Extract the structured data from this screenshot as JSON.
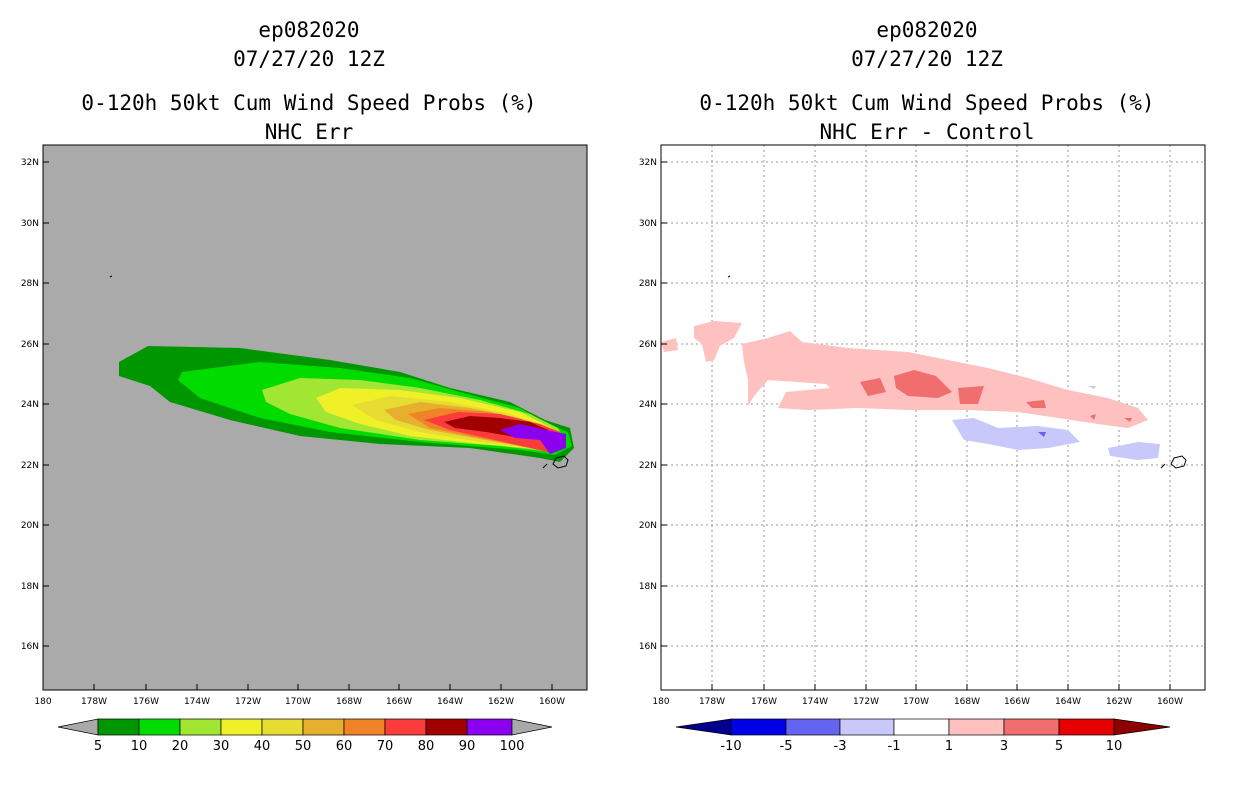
{
  "left": {
    "title_storm": "ep082020",
    "title_time": "07/27/20 12Z",
    "title_product": "0-120h 50kt Cum Wind Speed Probs (%)",
    "title_subtitle": "NHC Err",
    "lat_labels": [
      "32N",
      "30N",
      "28N",
      "26N",
      "24N",
      "22N",
      "20N",
      "18N",
      "16N"
    ],
    "lon_labels": [
      "180",
      "178W",
      "176W",
      "174W",
      "172W",
      "170W",
      "168W",
      "166W",
      "164W",
      "162W",
      "160W"
    ],
    "colorbar_labels": [
      "5",
      "10",
      "20",
      "30",
      "40",
      "50",
      "60",
      "70",
      "80",
      "90",
      "100"
    ],
    "colorbar_colors": [
      "#a9a9a9",
      "#009600",
      "#00dc00",
      "#a0e632",
      "#f0f028",
      "#e6dc32",
      "#e6af2d",
      "#f08228",
      "#fa3c3c",
      "#a00000",
      "#8c00f0",
      "#a9a9a9"
    ],
    "background_color": "#aaaaaa"
  },
  "right": {
    "title_storm": "ep082020",
    "title_time": "07/27/20 12Z",
    "title_product": "0-120h 50kt Cum Wind Speed Probs (%)",
    "title_subtitle": "NHC Err - Control",
    "lat_labels": [
      "32N",
      "30N",
      "28N",
      "26N",
      "24N",
      "22N",
      "20N",
      "18N",
      "16N"
    ],
    "lon_labels": [
      "180",
      "178W",
      "176W",
      "174W",
      "172W",
      "170W",
      "168W",
      "166W",
      "164W",
      "162W",
      "160W"
    ],
    "colorbar_labels": [
      "-10",
      "-5",
      "-3",
      "-1",
      "1",
      "3",
      "5",
      "10"
    ],
    "colorbar_colors": [
      "#00008c",
      "#0000e6",
      "#6464f0",
      "#c8c8fa",
      "#ffffff",
      "#ffc0c0",
      "#f06e6e",
      "#e60000",
      "#8c0000"
    ]
  },
  "chart_data": [
    {
      "type": "heatmap",
      "title": "0-120h 50kt Cum Wind Speed Probs (%)",
      "subtitle": "NHC Err",
      "storm": "ep082020",
      "time": "07/27/20 12Z",
      "lon_range": [
        -180,
        -158.5
      ],
      "lat_range": [
        14.5,
        32.5
      ],
      "contour_levels": [
        5,
        10,
        20,
        30,
        40,
        50,
        60,
        70,
        80,
        90,
        100
      ],
      "feature": "probability swath extending from about 176W-25N east-southeast to about 160W-23N, maximum 90-100% near 161W-23N"
    },
    {
      "type": "heatmap",
      "title": "0-120h 50kt Cum Wind Speed Probs (%)",
      "subtitle": "NHC Err - Control",
      "storm": "ep082020",
      "time": "07/27/20 12Z",
      "lon_range": [
        -180,
        -158.5
      ],
      "lat_range": [
        14.5,
        32.5
      ],
      "contour_levels": [
        -10,
        -5,
        -3,
        -1,
        1,
        3,
        5,
        10
      ],
      "feature": "positive differences 1-5% along 24-26N from 178W to 161W; negative differences -1 to -3% near 22.5-23N from 168W to 160W"
    }
  ]
}
